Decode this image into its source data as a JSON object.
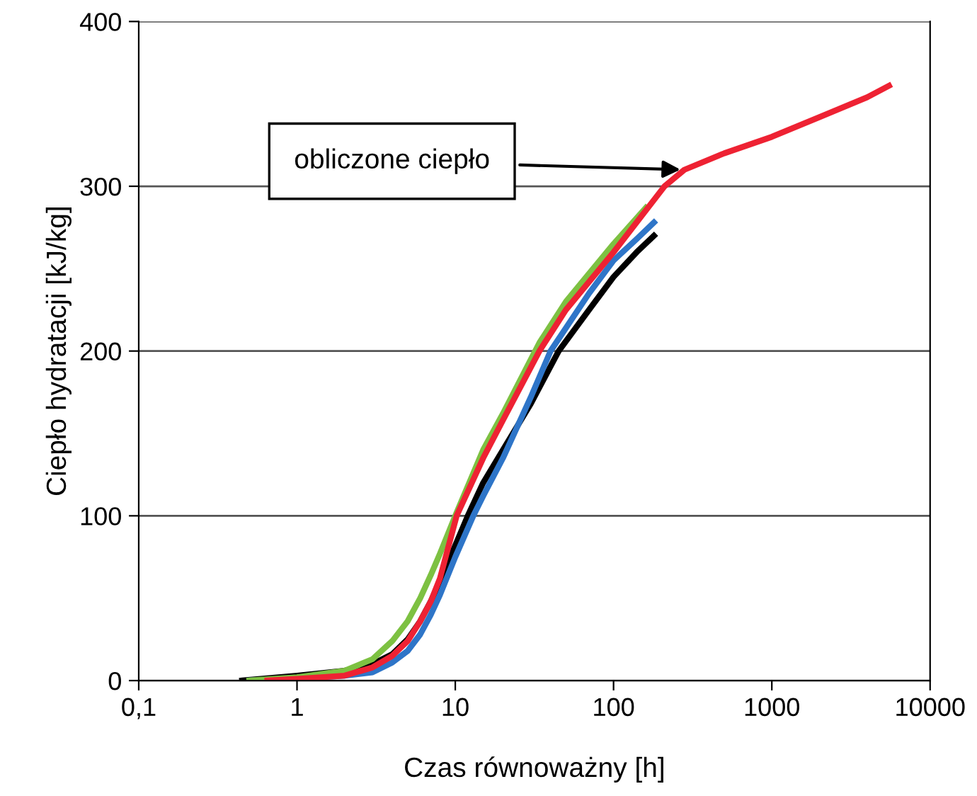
{
  "chart_data": {
    "type": "line",
    "xlabel": "Czas równoważny [h]",
    "ylabel": "Ciepło hydratacji [kJ/kg]",
    "log": "x",
    "xlim": [
      0.1,
      10000
    ],
    "ylim": [
      0,
      400
    ],
    "xticks": [
      {
        "value": 0.1,
        "label": "0,1"
      },
      1,
      10,
      100,
      1000,
      10000
    ],
    "yticks": [
      0,
      100,
      200,
      300,
      400
    ],
    "grid": "y",
    "legend": false,
    "marker": "none",
    "line_style": "solid",
    "series": [
      {
        "color": "#000000",
        "x": [
          0.45,
          1,
          2,
          3,
          4,
          5,
          6,
          7,
          8,
          10,
          12,
          15,
          20,
          30,
          45,
          70,
          100,
          140,
          180
        ],
        "values": [
          0,
          3,
          6,
          10,
          16,
          25,
          36,
          48,
          60,
          82,
          100,
          120,
          140,
          168,
          200,
          225,
          245,
          260,
          270
        ]
      },
      {
        "color": "#2e75c8",
        "x": [
          0.5,
          1,
          2,
          3,
          4,
          5,
          6,
          7,
          8,
          10,
          13,
          15,
          20,
          30,
          40,
          70,
          100,
          140,
          180
        ],
        "values": [
          0,
          1,
          3,
          5,
          11,
          18,
          28,
          40,
          52,
          75,
          100,
          112,
          135,
          172,
          200,
          235,
          255,
          268,
          278
        ]
      },
      {
        "color": "#7dc142",
        "x": [
          0.5,
          1,
          2,
          3,
          4,
          5,
          6,
          7,
          8,
          10,
          15,
          20,
          34,
          50,
          100,
          160
        ],
        "values": [
          0,
          2,
          6,
          13,
          24,
          36,
          50,
          64,
          77,
          100,
          140,
          162,
          205,
          230,
          265,
          287
        ]
      },
      {
        "color": "#ee2233",
        "x": [
          0.65,
          1,
          2,
          3,
          4,
          5,
          6,
          7,
          8,
          10.2,
          15,
          20,
          34,
          50,
          100,
          210,
          280,
          500,
          1000,
          2000,
          4000,
          5500
        ],
        "values": [
          0,
          1,
          3,
          8,
          15,
          24,
          36,
          48,
          62,
          100,
          135,
          158,
          200,
          225,
          260,
          300,
          310,
          320,
          330,
          342,
          354,
          361
        ]
      }
    ],
    "annotations": [
      {
        "text": "obliczone ciepło",
        "x": 280,
        "y": 310
      }
    ]
  }
}
